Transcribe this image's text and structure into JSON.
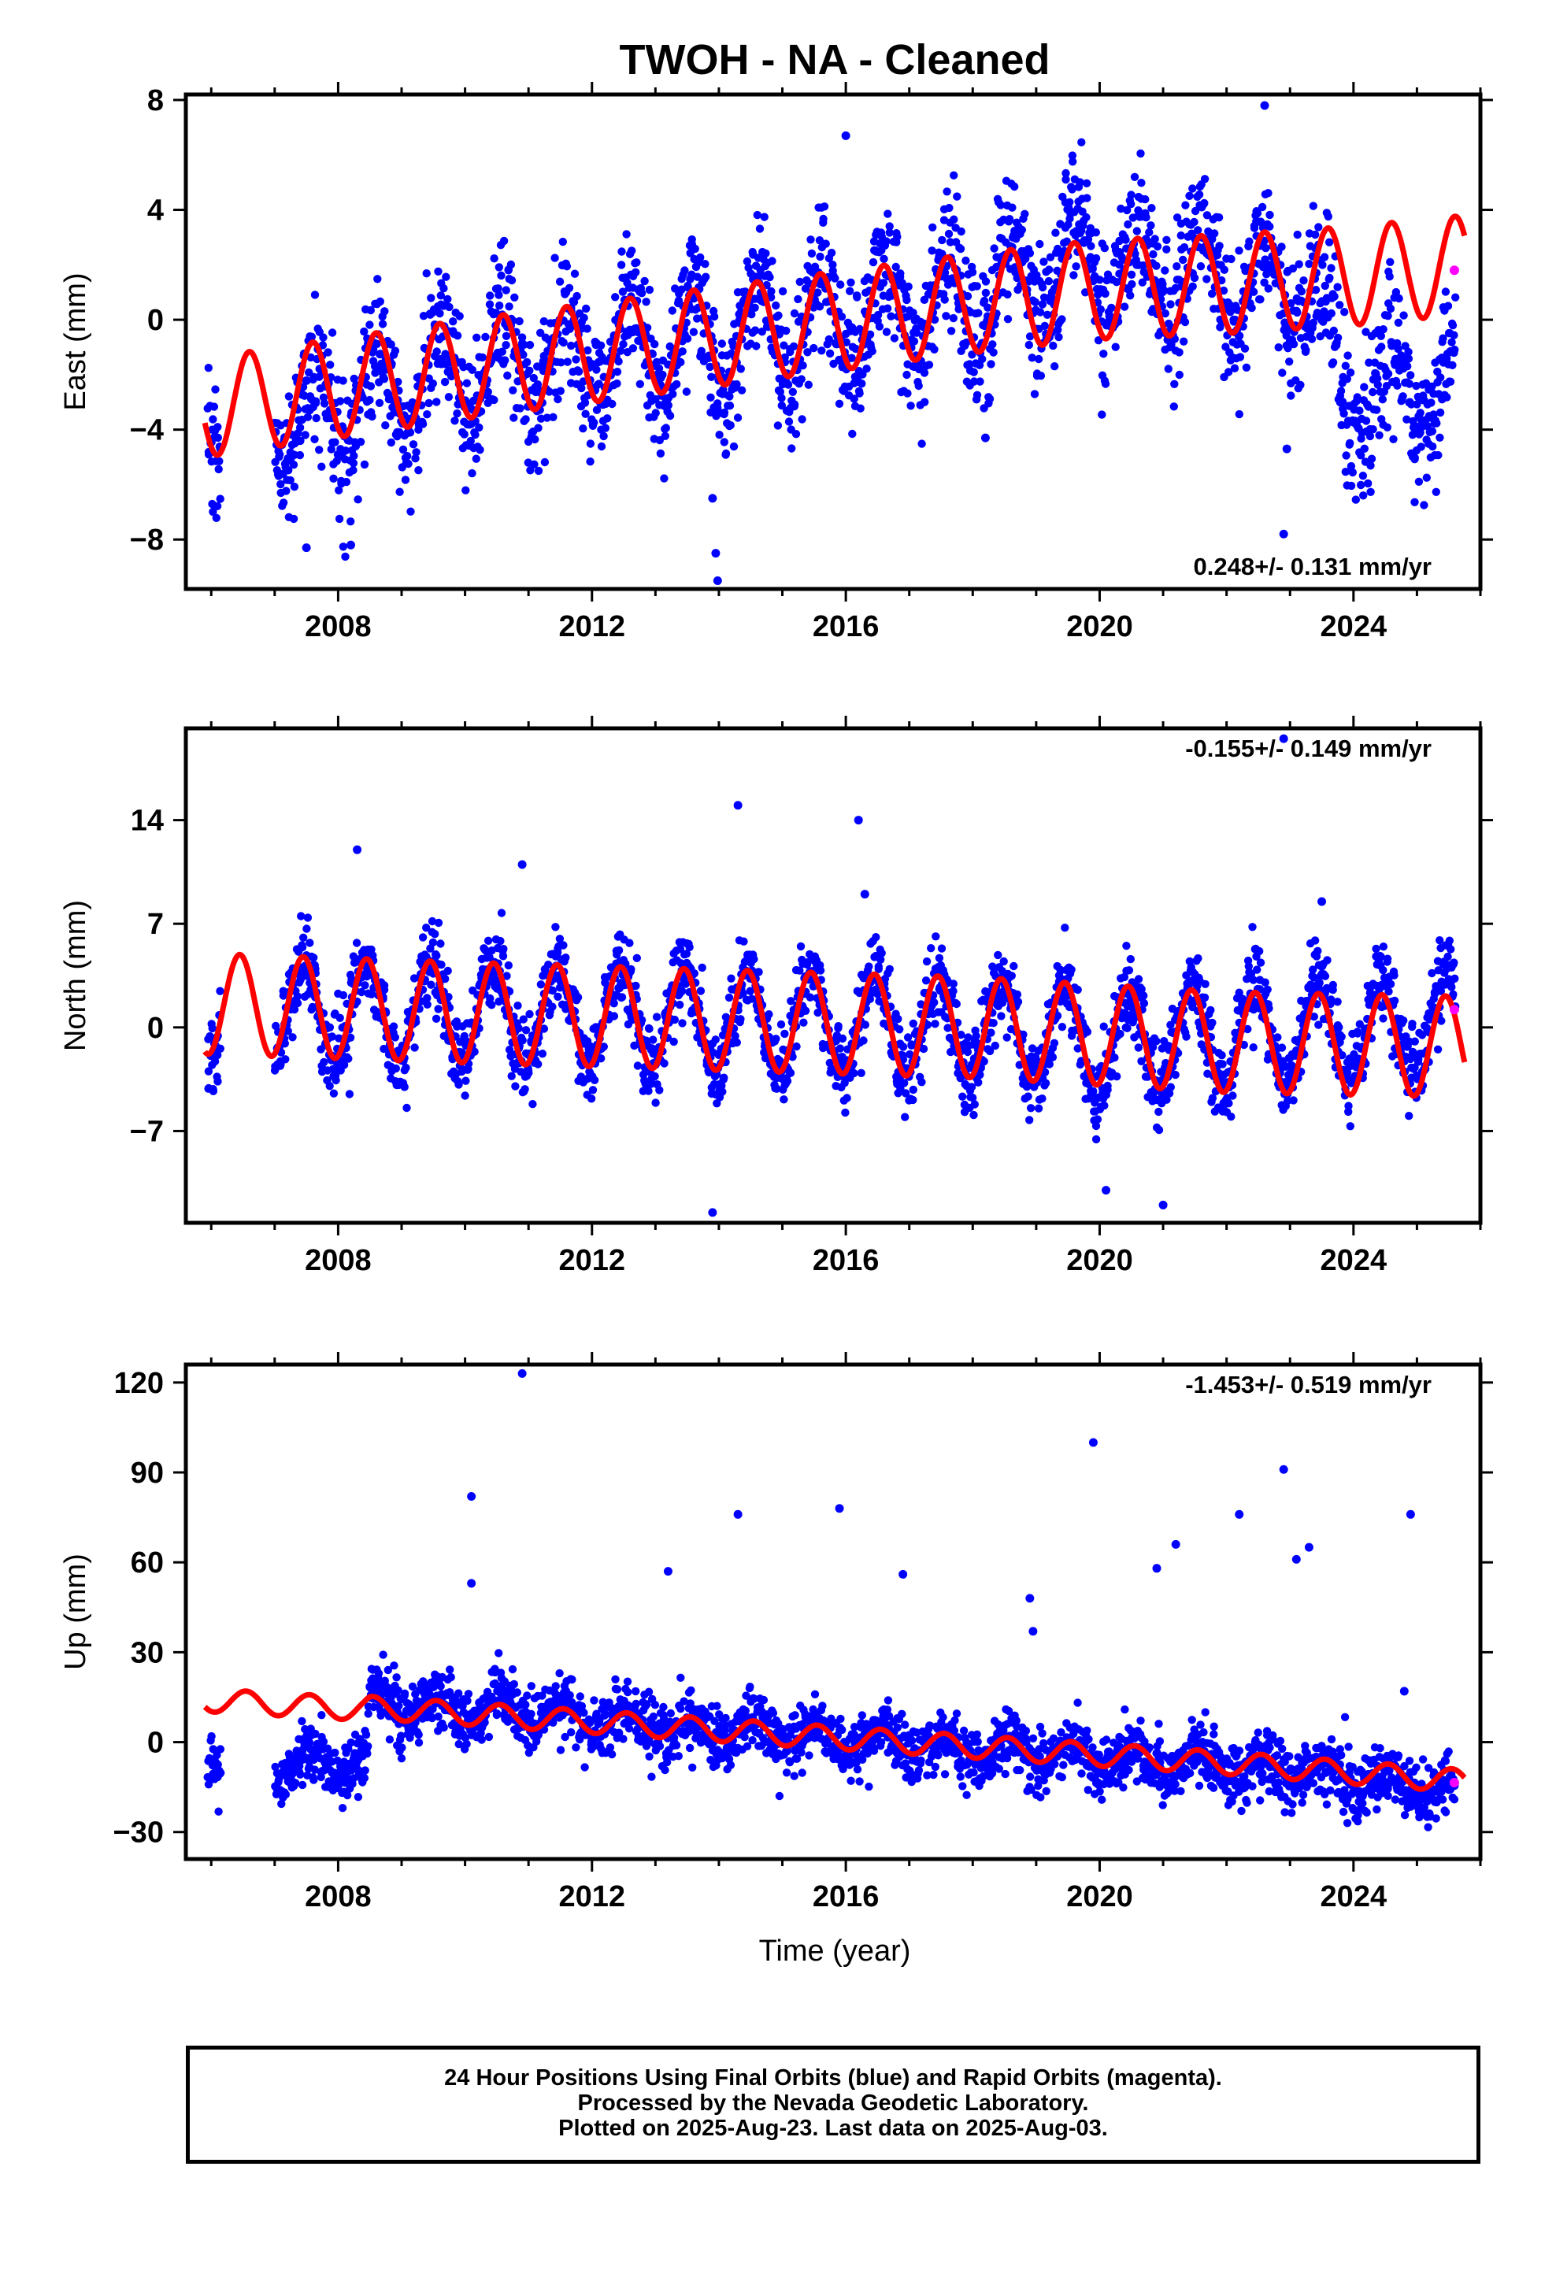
{
  "title": "TWOH  - NA - Cleaned",
  "xlabel": "Time (year)",
  "caption": {
    "line1": "24 Hour Positions Using Final Orbits (blue) and Rapid Orbits (magenta).",
    "line2": "Processed by the Nevada Geodetic Laboratory.",
    "line3": "Plotted on 2025-Aug-23. Last data on 2025-Aug-03."
  },
  "colors": {
    "final_orbits": "#0000ff",
    "rapid_orbits": "#ff00ff",
    "model": "#ff0000",
    "frame": "#000000"
  },
  "chart_data": [
    {
      "type": "scatter",
      "component": "east",
      "ylabel": "East (mm)",
      "rate_text": "0.248+/- 0.131 mm/yr",
      "xlim": [
        2005.6,
        2026.0
      ],
      "ylim": [
        -9.8,
        8.2
      ],
      "xticks": [
        2008,
        2012,
        2016,
        2020,
        2024
      ],
      "yticks": [
        -8,
        -4,
        0,
        4,
        8
      ],
      "ytick_labels": [
        "−8",
        "−4",
        "0",
        "4",
        "8"
      ],
      "data_start": 2005.95,
      "data_gap": [
        2006.15,
        2007.0
      ],
      "data_end": 2025.6,
      "model": {
        "name": "fit",
        "x_start": 2005.9,
        "x_end": 2025.75,
        "trend_points": [
          [
            2005.9,
            -3.2
          ],
          [
            2010.0,
            -1.8
          ],
          [
            2014.0,
            -0.6
          ],
          [
            2018.0,
            0.6
          ],
          [
            2020.0,
            1.1
          ],
          [
            2022.0,
            1.3
          ],
          [
            2024.0,
            1.6
          ],
          [
            2025.75,
            2.0
          ]
        ],
        "annual_amplitude": 1.8,
        "annual_peak_phase": 0.6
      },
      "scatter_trend_points": [
        [
          2005.9,
          -3.0
        ],
        [
          2007.3,
          -3.8
        ],
        [
          2010.0,
          -1.8
        ],
        [
          2014.0,
          -0.6
        ],
        [
          2018.0,
          0.6
        ],
        [
          2020.0,
          2.2
        ],
        [
          2022.0,
          1.6
        ],
        [
          2023.4,
          0.8
        ],
        [
          2023.8,
          -2.8
        ],
        [
          2025.6,
          -2.4
        ]
      ],
      "scatter_noise": 1.25,
      "outliers": [
        [
          2013.9,
          -6.5
        ],
        [
          2013.95,
          -8.5
        ],
        [
          2013.98,
          -9.5
        ],
        [
          2016.0,
          6.7
        ],
        [
          2018.2,
          -4.3
        ],
        [
          2022.9,
          -7.8
        ],
        [
          2022.95,
          -4.7
        ],
        [
          2007.5,
          -8.3
        ],
        [
          2008.2,
          -8.2
        ],
        [
          2022.6,
          7.8
        ]
      ],
      "rapid_points": [
        [
          2025.59,
          1.8
        ]
      ]
    },
    {
      "type": "scatter",
      "component": "north",
      "ylabel": "North (mm)",
      "rate_text": "-0.155+/- 0.149 mm/yr",
      "xlim": [
        2005.6,
        2026.0
      ],
      "ylim": [
        -13.2,
        20.2
      ],
      "xticks": [
        2008,
        2012,
        2016,
        2020,
        2024
      ],
      "yticks": [
        -7,
        0,
        7,
        14
      ],
      "ytick_labels": [
        "−7",
        "0",
        "7",
        "14"
      ],
      "data_start": 2005.95,
      "data_gap": [
        2006.15,
        2007.0
      ],
      "data_end": 2025.6,
      "model": {
        "name": "fit",
        "x_start": 2005.9,
        "x_end": 2025.75,
        "trend_points": [
          [
            2005.9,
            1.6
          ],
          [
            2010.0,
            1.0
          ],
          [
            2014.0,
            0.5
          ],
          [
            2018.0,
            0.0
          ],
          [
            2020.0,
            -0.5
          ],
          [
            2022.0,
            -1.0
          ],
          [
            2025.75,
            -1.3
          ]
        ],
        "annual_amplitude": 3.4,
        "annual_peak_phase": 0.45
      },
      "scatter_trend_points": [
        [
          2005.9,
          1.2
        ],
        [
          2010.0,
          1.0
        ],
        [
          2014.0,
          0.4
        ],
        [
          2018.0,
          0.0
        ],
        [
          2020.0,
          -1.0
        ],
        [
          2022.0,
          -0.6
        ],
        [
          2025.6,
          0.5
        ]
      ],
      "scatter_noise": 1.4,
      "outliers": [
        [
          2014.3,
          15.0
        ],
        [
          2016.2,
          14.0
        ],
        [
          2022.9,
          19.5
        ],
        [
          2010.9,
          11.0
        ],
        [
          2008.3,
          12.0
        ],
        [
          2013.9,
          -12.5
        ],
        [
          2021.0,
          -12.0
        ],
        [
          2020.1,
          -11.0
        ],
        [
          2016.3,
          9.0
        ],
        [
          2023.5,
          8.5
        ]
      ],
      "rapid_points": [
        [
          2025.59,
          1.2
        ]
      ]
    },
    {
      "type": "scatter",
      "component": "up",
      "ylabel": "Up (mm)",
      "rate_text": "-1.453+/- 0.519 mm/yr",
      "xlim": [
        2005.6,
        2026.0
      ],
      "ylim": [
        -39.0,
        126.0
      ],
      "xticks": [
        2008,
        2012,
        2016,
        2020,
        2024
      ],
      "yticks": [
        -30,
        0,
        30,
        60,
        90,
        120
      ],
      "ytick_labels": [
        "−30",
        "0",
        "30",
        "60",
        "90",
        "120"
      ],
      "data_start": 2005.95,
      "data_gap": [
        2006.15,
        2007.0
      ],
      "data_end": 2025.6,
      "model": {
        "name": "fit",
        "x_start": 2005.9,
        "x_end": 2025.75,
        "trend_points": [
          [
            2005.9,
            14.0
          ],
          [
            2008.4,
            11.0
          ],
          [
            2008.5,
            11.5
          ],
          [
            2010.0,
            9.5
          ],
          [
            2014.0,
            4.0
          ],
          [
            2018.0,
            -1.5
          ],
          [
            2022.0,
            -7.0
          ],
          [
            2025.75,
            -13.0
          ]
        ],
        "annual_amplitude": 3.8,
        "annual_peak_phase": 0.55
      },
      "scatter_trend_points": [
        [
          2005.9,
          -6.0
        ],
        [
          2007.0,
          -7.0
        ],
        [
          2008.45,
          -7.5
        ],
        [
          2008.5,
          14.0
        ],
        [
          2010.0,
          11.0
        ],
        [
          2014.0,
          4.0
        ],
        [
          2018.0,
          -2.0
        ],
        [
          2022.0,
          -8.0
        ],
        [
          2025.6,
          -16.0
        ]
      ],
      "scatter_noise": 5.0,
      "outliers": [
        [
          2010.9,
          123.0
        ],
        [
          2019.9,
          100.0
        ],
        [
          2022.9,
          91.0
        ],
        [
          2010.1,
          82.0
        ],
        [
          2014.3,
          76.0
        ],
        [
          2015.9,
          78.0
        ],
        [
          2022.2,
          76.0
        ],
        [
          2024.9,
          76.0
        ],
        [
          2021.2,
          66.0
        ],
        [
          2023.1,
          61.0
        ],
        [
          2023.3,
          65.0
        ],
        [
          2020.9,
          58.0
        ],
        [
          2013.2,
          57.0
        ],
        [
          2016.9,
          56.0
        ],
        [
          2010.1,
          53.0
        ],
        [
          2018.9,
          48.0
        ],
        [
          2018.95,
          37.0
        ],
        [
          2024.8,
          17.0
        ]
      ],
      "rapid_points": [
        [
          2025.59,
          -13.5
        ]
      ]
    }
  ]
}
